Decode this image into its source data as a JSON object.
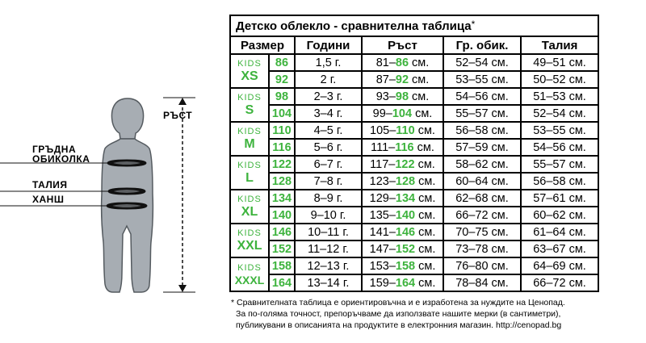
{
  "figure": {
    "labels": {
      "height": "РЪСТ",
      "chest_line1": "ГРЪДНА",
      "chest_line2": "ОБИКОЛКА",
      "waist": "ТАЛИЯ",
      "hip": "ХАНШ"
    },
    "colors": {
      "body": "#a7adb3",
      "outline": "#555b60",
      "lines": "#111111"
    }
  },
  "table": {
    "title": "Детско облекло - сравнителна таблица",
    "title_mark": "*",
    "headers": [
      "Размер",
      "Години",
      "Ръст",
      "Гр. обик.",
      "Талия"
    ],
    "accent_color": "#3db33d",
    "groups": [
      {
        "kids": "KIDS",
        "size": "XS",
        "rows": [
          {
            "num": "86",
            "age": "1,5 г.",
            "h_from": "81–",
            "h_to": "86",
            "h_unit": " см.",
            "chest": "52–54 см.",
            "waist": "49–51 см."
          },
          {
            "num": "92",
            "age": "2 г.",
            "h_from": "87–",
            "h_to": "92",
            "h_unit": " см.",
            "chest": "53–55 см.",
            "waist": "50–52 см."
          }
        ]
      },
      {
        "kids": "KIDS",
        "size": "S",
        "rows": [
          {
            "num": "98",
            "age": "2–3 г.",
            "h_from": "93–",
            "h_to": "98",
            "h_unit": " см.",
            "chest": "54–56 см.",
            "waist": "51–53 см."
          },
          {
            "num": "104",
            "age": "3–4 г.",
            "h_from": "99–",
            "h_to": "104",
            "h_unit": " см.",
            "chest": "55–57 см.",
            "waist": "52–54 см."
          }
        ]
      },
      {
        "kids": "KIDS",
        "size": "M",
        "rows": [
          {
            "num": "110",
            "age": "4–5 г.",
            "h_from": "105–",
            "h_to": "110",
            "h_unit": " см.",
            "chest": "56–58 см.",
            "waist": "53–55 см."
          },
          {
            "num": "116",
            "age": "5–6 г.",
            "h_from": "111–",
            "h_to": "116",
            "h_unit": " см.",
            "chest": "57–59 см.",
            "waist": "54–56 см."
          }
        ]
      },
      {
        "kids": "KIDS",
        "size": "L",
        "rows": [
          {
            "num": "122",
            "age": "6–7 г.",
            "h_from": "117–",
            "h_to": "122",
            "h_unit": " см.",
            "chest": "58–62 см.",
            "waist": "55–57 см."
          },
          {
            "num": "128",
            "age": "7–8 г.",
            "h_from": "123–",
            "h_to": "128",
            "h_unit": " см.",
            "chest": "60–64 см.",
            "waist": "56–58 см."
          }
        ]
      },
      {
        "kids": "KIDS",
        "size": "XL",
        "rows": [
          {
            "num": "134",
            "age": "8–9 г.",
            "h_from": "129–",
            "h_to": "134",
            "h_unit": " см.",
            "chest": "62–68 см.",
            "waist": "57–61 см."
          },
          {
            "num": "140",
            "age": "9–10 г.",
            "h_from": "135–",
            "h_to": "140",
            "h_unit": " см.",
            "chest": "66–72 см.",
            "waist": "60–62 см."
          }
        ]
      },
      {
        "kids": "KIDS",
        "size": "XXL",
        "rows": [
          {
            "num": "146",
            "age": "10–11 г.",
            "h_from": "141–",
            "h_to": "146",
            "h_unit": " см.",
            "chest": "70–75 см.",
            "waist": "61–64 см."
          },
          {
            "num": "152",
            "age": "11–12 г.",
            "h_from": "147–",
            "h_to": "152",
            "h_unit": " см.",
            "chest": "73–78 см.",
            "waist": "63–67 см."
          }
        ]
      },
      {
        "kids": "KIDS",
        "size": "XXXL",
        "rows": [
          {
            "num": "158",
            "age": "12–13 г.",
            "h_from": "153–",
            "h_to": "158",
            "h_unit": " см.",
            "chest": "76–80 см.",
            "waist": "64–69 см."
          },
          {
            "num": "164",
            "age": "13–14 г.",
            "h_from": "159–",
            "h_to": "164",
            "h_unit": " см.",
            "chest": "78–84 см.",
            "waist": "66–72 см."
          }
        ]
      }
    ]
  },
  "footnote": {
    "line1": "* Сравнителната таблица е ориентировъчна и е изработена за нуждите на Ценопад.",
    "line2": "За по-голяма точност, препоръчваме да използвате нашите мерки (в сантиметри),",
    "line3": "публикувани в описанията на продуктите в електронния магазин.  http://cenopad.bg"
  }
}
